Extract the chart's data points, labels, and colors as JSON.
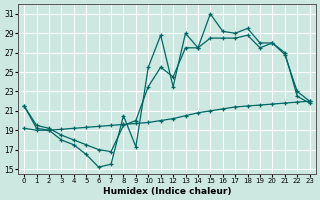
{
  "xlabel": "Humidex (Indice chaleur)",
  "background_color": "#cce8e0",
  "grid_color": "#ffffff",
  "line_color": "#006666",
  "xlim": [
    -0.5,
    23.5
  ],
  "ylim": [
    14.5,
    32.0
  ],
  "xticks": [
    0,
    1,
    2,
    3,
    4,
    5,
    6,
    7,
    8,
    9,
    10,
    11,
    12,
    13,
    14,
    15,
    16,
    17,
    18,
    19,
    20,
    21,
    22,
    23
  ],
  "yticks": [
    15,
    17,
    19,
    21,
    23,
    25,
    27,
    29,
    31
  ],
  "series1_x": [
    0,
    1,
    2,
    3,
    4,
    5,
    6,
    7,
    8,
    9,
    10,
    11,
    12,
    13,
    14,
    15,
    16,
    17,
    18,
    19,
    20,
    21,
    22,
    23
  ],
  "series1_y": [
    21.5,
    19.2,
    19.0,
    18.0,
    17.5,
    16.5,
    15.2,
    15.5,
    20.5,
    17.3,
    25.5,
    28.8,
    23.5,
    29.0,
    27.5,
    31.0,
    29.2,
    29.0,
    29.5,
    28.0,
    28.0,
    27.0,
    22.5,
    21.8
  ],
  "series2_x": [
    0,
    1,
    2,
    3,
    4,
    5,
    6,
    7,
    8,
    9,
    10,
    11,
    12,
    13,
    14,
    15,
    16,
    17,
    18,
    19,
    20,
    21,
    22,
    23
  ],
  "series2_y": [
    21.5,
    19.5,
    19.2,
    18.5,
    18.0,
    17.5,
    17.0,
    16.8,
    19.5,
    20.0,
    23.5,
    25.5,
    24.5,
    27.5,
    27.5,
    28.5,
    28.5,
    28.5,
    28.8,
    27.5,
    28.0,
    26.8,
    23.0,
    22.0
  ],
  "series3_x": [
    0,
    1,
    2,
    3,
    4,
    5,
    6,
    7,
    8,
    9,
    10,
    11,
    12,
    13,
    14,
    15,
    16,
    17,
    18,
    19,
    20,
    21,
    22,
    23
  ],
  "series3_y": [
    19.2,
    19.0,
    19.0,
    19.1,
    19.2,
    19.3,
    19.4,
    19.5,
    19.6,
    19.7,
    19.8,
    20.0,
    20.2,
    20.5,
    20.8,
    21.0,
    21.2,
    21.4,
    21.5,
    21.6,
    21.7,
    21.8,
    21.9,
    22.0
  ]
}
